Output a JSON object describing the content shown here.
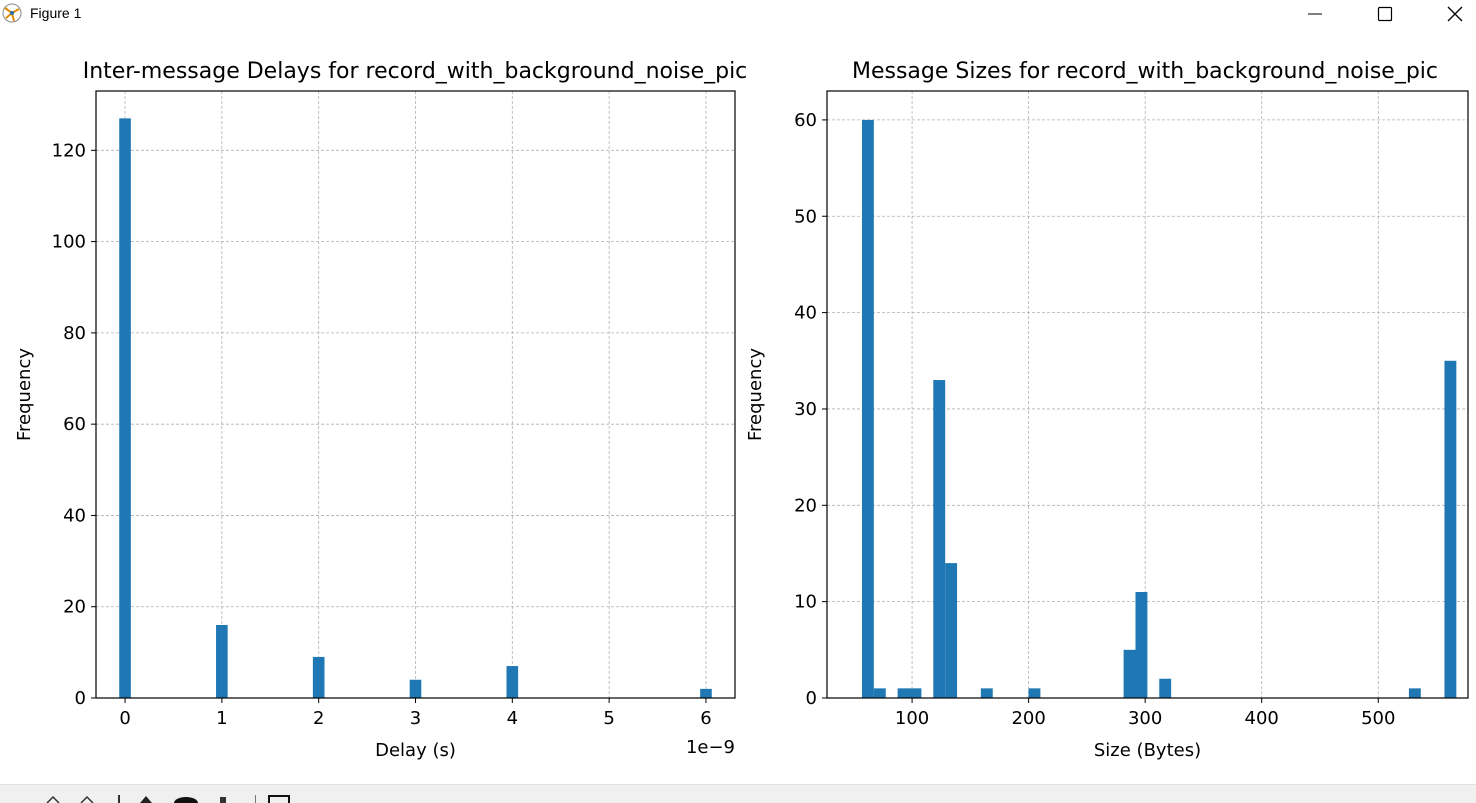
{
  "window": {
    "title": "Figure 1",
    "icons": [
      "app-icon",
      "minimize-icon",
      "maximize-icon",
      "close-icon"
    ]
  },
  "toolbar": {
    "icons": [
      "home-icon",
      "back-icon",
      "forward-icon",
      "pan-icon",
      "zoom-icon",
      "configure-icon",
      "save-icon"
    ]
  },
  "chart_data": [
    {
      "type": "bar",
      "title": "Inter-message Delays for record_with_background_noise_pic",
      "xlabel": "Delay (s)",
      "ylabel": "Frequency",
      "x_offset_text": "1e−9",
      "xticks": [
        "0",
        "1",
        "2",
        "3",
        "4",
        "5",
        "6"
      ],
      "yticks": [
        "0",
        "20",
        "40",
        "60",
        "80",
        "100",
        "120"
      ],
      "xlim": [
        -0.3,
        6.3
      ],
      "ylim": [
        0,
        133
      ],
      "grid": true,
      "color": "#1f77b4",
      "bin_width": 0.12,
      "bins": [
        {
          "x": 0,
          "count": 127
        },
        {
          "x": 1,
          "count": 16
        },
        {
          "x": 2,
          "count": 9
        },
        {
          "x": 3,
          "count": 4
        },
        {
          "x": 4,
          "count": 7
        },
        {
          "x": 6,
          "count": 2
        }
      ]
    },
    {
      "type": "bar",
      "title": "Message Sizes for record_with_background_noise_pic",
      "xlabel": "Size (Bytes)",
      "ylabel": "Frequency",
      "xticks": [
        "100",
        "200",
        "300",
        "400",
        "500"
      ],
      "yticks": [
        "0",
        "10",
        "20",
        "30",
        "40",
        "50",
        "60"
      ],
      "xlim": [
        27,
        577
      ],
      "ylim": [
        0,
        63
      ],
      "grid": true,
      "color": "#1f77b4",
      "bin_width": 10.2,
      "bins": [
        {
          "x": 62.1,
          "count": 60
        },
        {
          "x": 72.3,
          "count": 1
        },
        {
          "x": 92.7,
          "count": 1
        },
        {
          "x": 102.9,
          "count": 1
        },
        {
          "x": 123.3,
          "count": 33
        },
        {
          "x": 133.5,
          "count": 14
        },
        {
          "x": 164.1,
          "count": 1
        },
        {
          "x": 205.0,
          "count": 1
        },
        {
          "x": 286.6,
          "count": 5
        },
        {
          "x": 296.8,
          "count": 11
        },
        {
          "x": 317.2,
          "count": 2
        },
        {
          "x": 531.4,
          "count": 1
        },
        {
          "x": 561.9,
          "count": 35
        }
      ]
    }
  ]
}
